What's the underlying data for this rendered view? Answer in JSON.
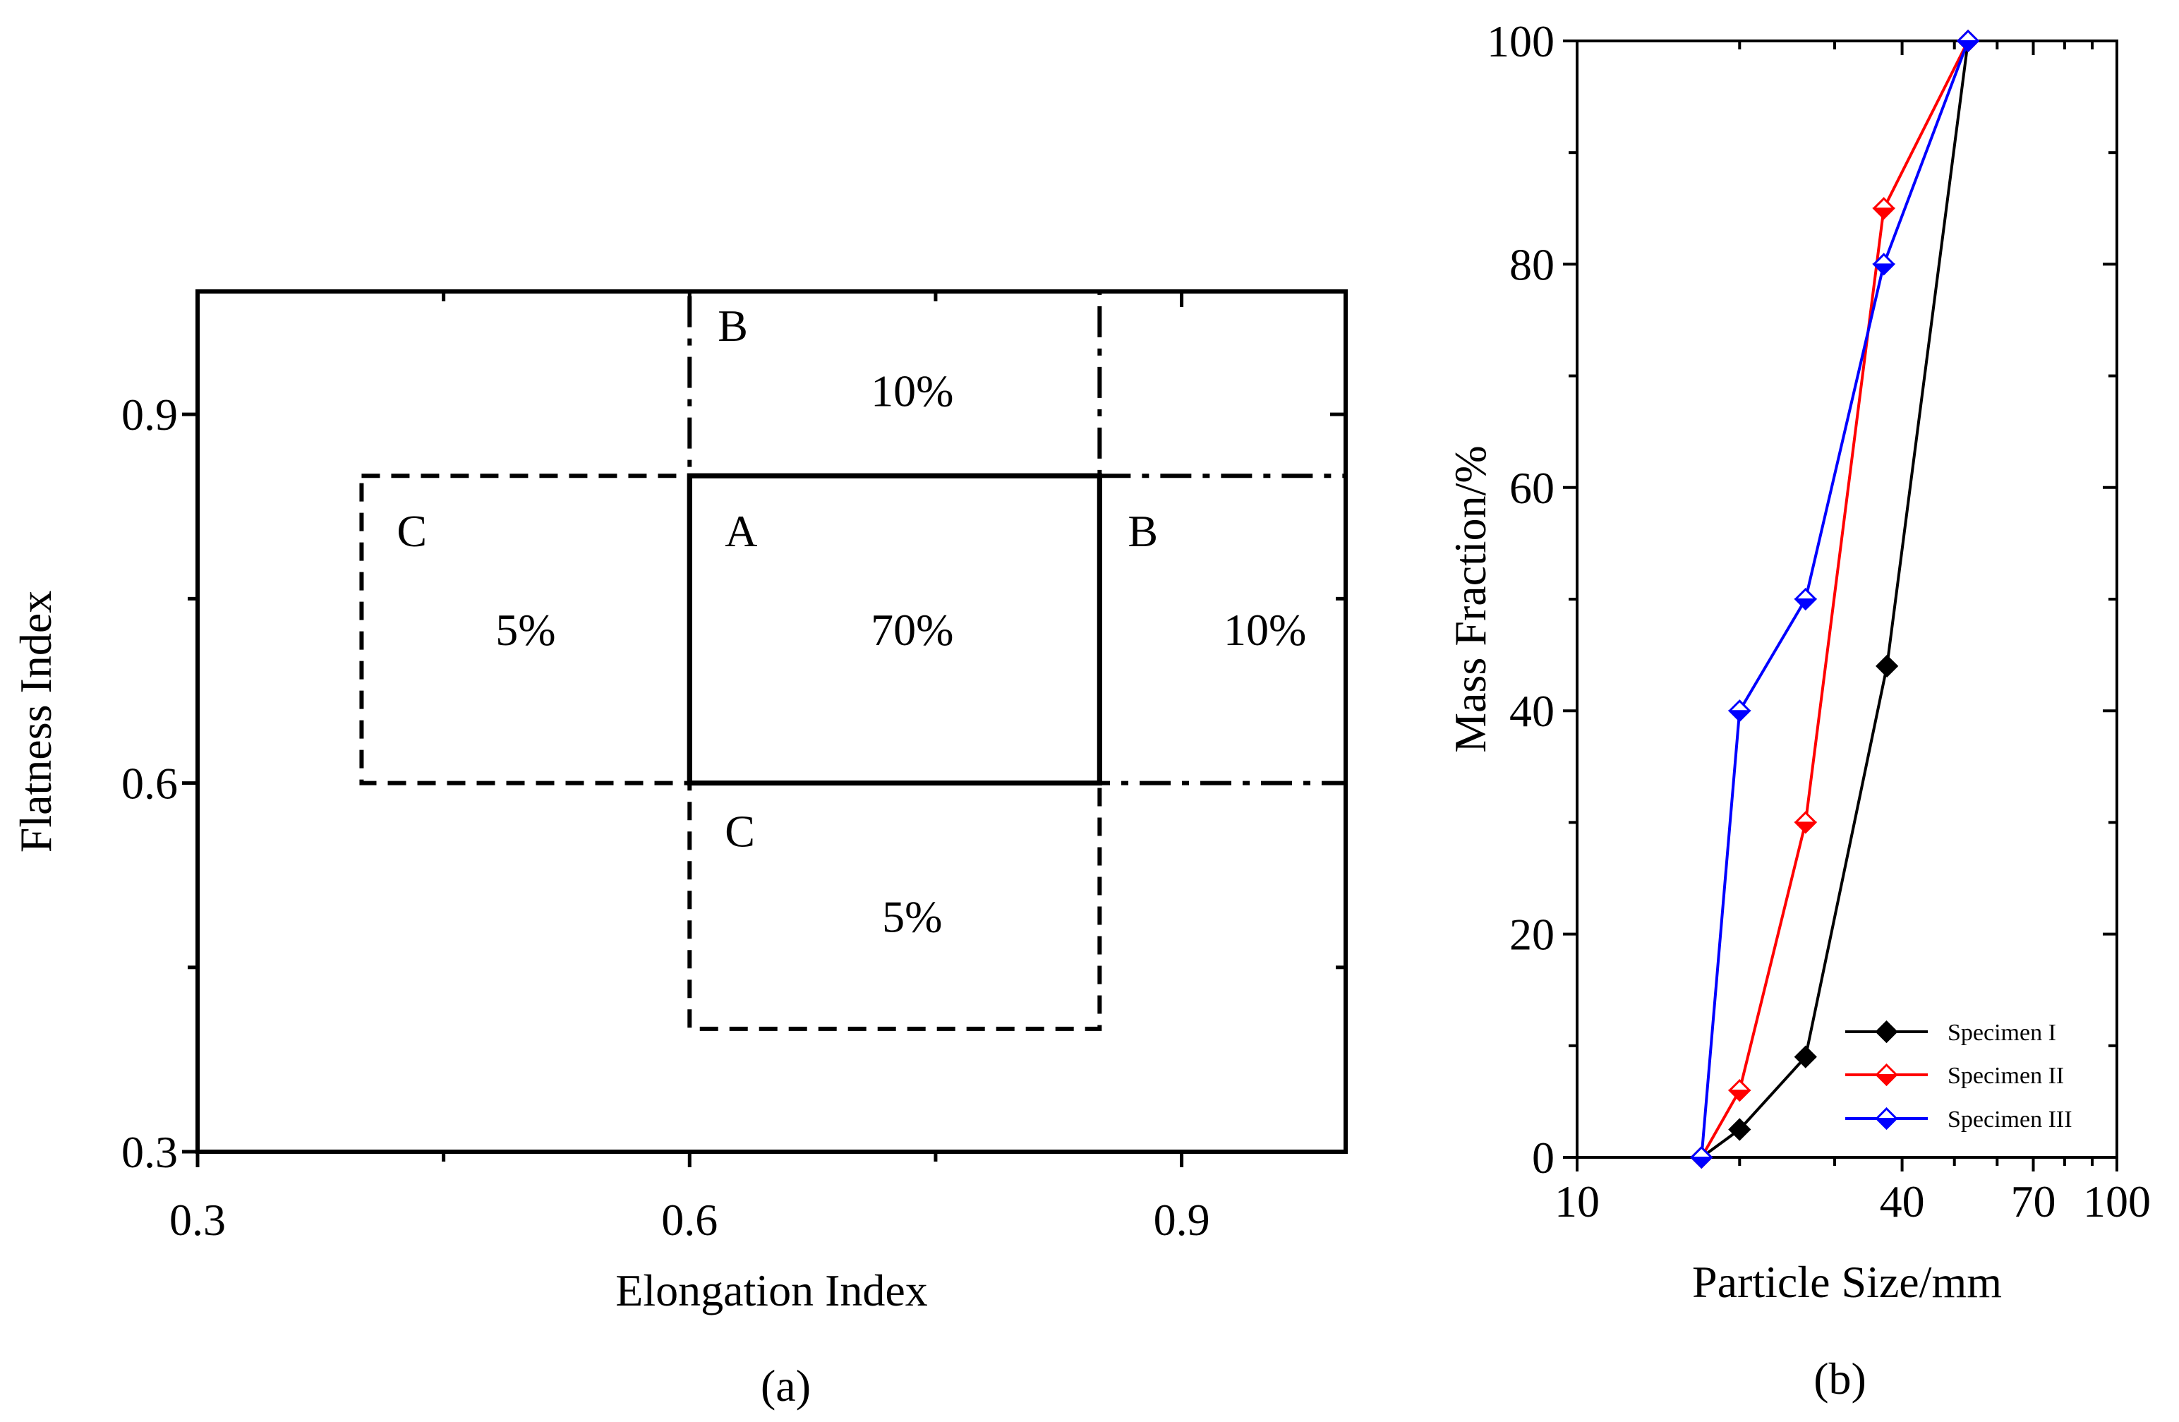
{
  "chart_data": [
    {
      "type": "region-diagram",
      "panel_label": "(a)",
      "xlabel": "Elongation Index",
      "ylabel": "Flatness Index",
      "xlim": [
        0.3,
        1.0
      ],
      "ylim": [
        0.3,
        1.0
      ],
      "xticks": [
        0.3,
        0.6,
        0.9
      ],
      "yticks": [
        0.3,
        0.6,
        0.9
      ],
      "xtick_labels": [
        "0.3",
        "0.6",
        "0.9"
      ],
      "ytick_labels": [
        "0.3",
        "0.6",
        "0.9"
      ],
      "regions": [
        {
          "id": "A",
          "letter": "A",
          "percent": "70%",
          "line": "solid",
          "x": [
            0.6,
            0.85
          ],
          "y": [
            0.6,
            0.85
          ]
        },
        {
          "id": "B-top",
          "letter": "B",
          "percent": "10%",
          "line": "dashdot",
          "x": [
            0.6,
            0.85
          ],
          "y": [
            0.85,
            1.0
          ]
        },
        {
          "id": "B-right",
          "letter": "B",
          "percent": "10%",
          "line": "dashdot",
          "x": [
            0.85,
            1.0
          ],
          "y": [
            0.6,
            0.85
          ]
        },
        {
          "id": "C-left",
          "letter": "C",
          "percent": "5%",
          "line": "dashed",
          "x": [
            0.4,
            0.6
          ],
          "y": [
            0.6,
            0.85
          ]
        },
        {
          "id": "C-bottom",
          "letter": "C",
          "percent": "5%",
          "line": "dashed",
          "x": [
            0.6,
            0.85
          ],
          "y": [
            0.4,
            0.6
          ]
        }
      ]
    },
    {
      "type": "line",
      "panel_label": "(b)",
      "xlabel": "Particle Size/mm",
      "ylabel": "Mass Fraction/%",
      "xscale": "log",
      "xlim": [
        10,
        100
      ],
      "ylim": [
        0,
        100
      ],
      "xticks": [
        10,
        40,
        70,
        100
      ],
      "xtick_labels": [
        "10",
        "40",
        "70",
        "100"
      ],
      "yticks": [
        0,
        20,
        40,
        60,
        80,
        100
      ],
      "ytick_labels": [
        "0",
        "20",
        "40",
        "60",
        "80",
        "100"
      ],
      "legend_position": "bottom-right",
      "series": [
        {
          "name": "Specimen I",
          "color": "#000000",
          "marker": "filled-diamond",
          "x": [
            17,
            20,
            26.5,
            37.5,
            53
          ],
          "y": [
            0,
            2.5,
            9,
            44,
            100
          ]
        },
        {
          "name": "Specimen II",
          "color": "#ff0000",
          "marker": "half-diamond",
          "x": [
            17,
            20,
            26.5,
            37,
            53
          ],
          "y": [
            0,
            6,
            30,
            85,
            100
          ]
        },
        {
          "name": "Specimen III",
          "color": "#0000ff",
          "marker": "half-diamond",
          "x": [
            17,
            20,
            26.5,
            37,
            53
          ],
          "y": [
            0,
            40,
            50,
            80,
            100
          ]
        }
      ]
    }
  ]
}
